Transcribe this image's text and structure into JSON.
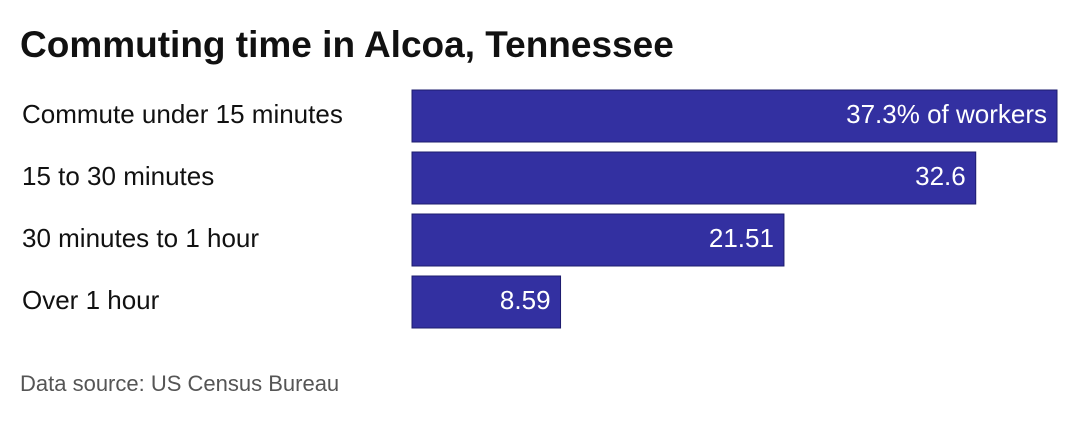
{
  "chart_data": {
    "type": "bar",
    "orientation": "horizontal",
    "title": "Commuting time in Alcoa, Tennessee",
    "categories": [
      "Commute under 15 minutes",
      "15 to 30 minutes",
      "30 minutes to 1 hour",
      "Over 1 hour"
    ],
    "values": [
      37.3,
      32.6,
      21.51,
      8.59
    ],
    "value_labels": [
      "37.3% of workers",
      "32.6",
      "21.51",
      "8.59"
    ],
    "color": "#3330a1",
    "source": "Data source: US Census Bureau"
  }
}
